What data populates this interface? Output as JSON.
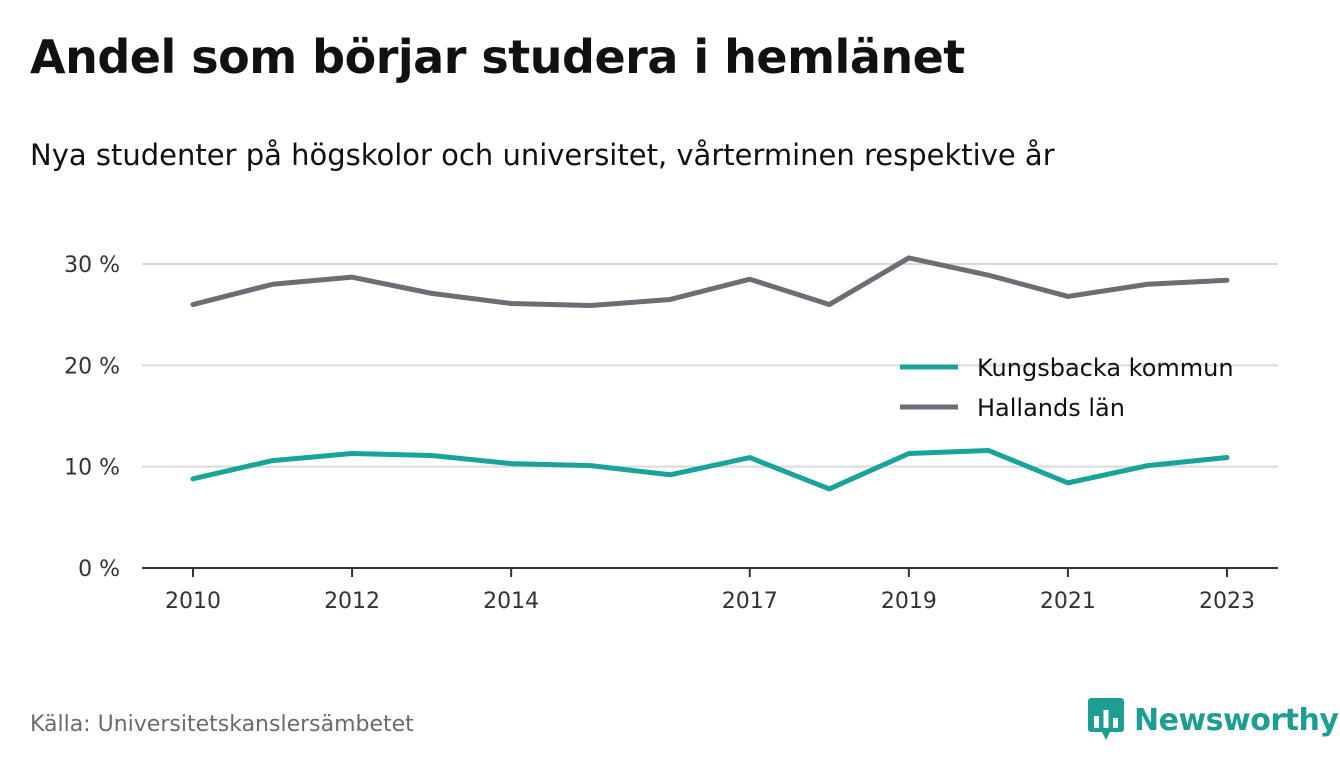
{
  "header": {
    "title": "Andel som börjar studera i hemlänet",
    "subtitle": "Nya studenter på högskolor och universitet, vårterminen respektive år"
  },
  "footer": {
    "source": "Källa: Universitetskanslersämbetet",
    "brand": "Newsworthy"
  },
  "colors": {
    "kungsbacka": "#1aa39a",
    "halland": "#6e6c74",
    "grid": "#d9d9d9",
    "axis": "#333333",
    "brand": "#1e9e92"
  },
  "icons": {
    "brand_logo": "bar-chart-speech-bubble-icon"
  },
  "chart_data": {
    "type": "line",
    "title": "Andel som börjar studera i hemlänet",
    "subtitle": "Nya studenter på högskolor och universitet, vårterminen respektive år",
    "x": [
      2010,
      2011,
      2012,
      2013,
      2014,
      2015,
      2016,
      2017,
      2018,
      2019,
      2020,
      2021,
      2022,
      2023
    ],
    "x_ticks": [
      2010,
      2012,
      2014,
      2017,
      2019,
      2021,
      2023
    ],
    "x_tick_labels": [
      "2010",
      "2012",
      "2014",
      "2017",
      "2019",
      "2021",
      "2023"
    ],
    "y_ticks": [
      0,
      10,
      20,
      30
    ],
    "y_tick_labels": [
      "0 %",
      "10 %",
      "20 %",
      "30 %"
    ],
    "ylim": [
      0,
      30
    ],
    "grid": true,
    "legend_position": "right",
    "series": [
      {
        "name": "Kungsbacka kommun",
        "values": [
          8.8,
          10.6,
          11.3,
          11.1,
          10.3,
          10.1,
          9.2,
          10.9,
          7.8,
          11.3,
          11.6,
          8.4,
          10.1,
          10.9
        ]
      },
      {
        "name": "Hallands län",
        "values": [
          26.0,
          28.0,
          28.7,
          27.1,
          26.1,
          25.9,
          26.5,
          28.5,
          26.0,
          30.6,
          28.9,
          26.8,
          28.0,
          28.4
        ]
      }
    ]
  }
}
